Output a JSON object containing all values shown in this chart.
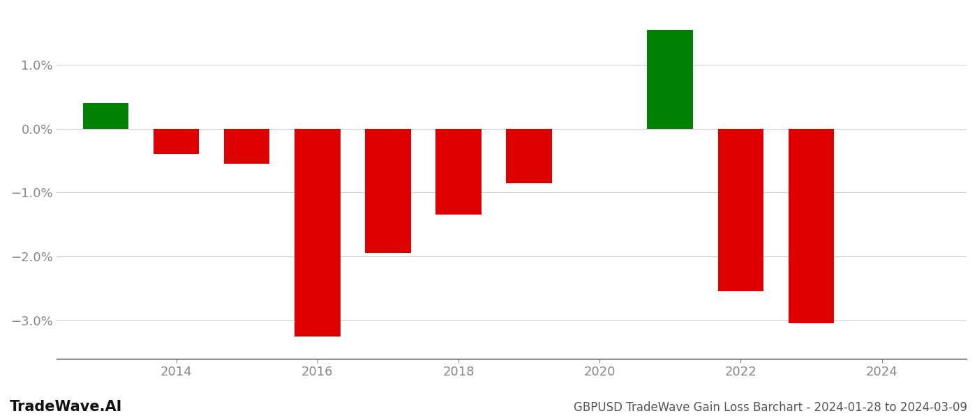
{
  "years": [
    2013,
    2014,
    2015,
    2016,
    2017,
    2018,
    2019,
    2021,
    2022,
    2023
  ],
  "values": [
    0.4,
    -0.4,
    -0.55,
    -3.25,
    -1.95,
    -1.35,
    -0.85,
    1.55,
    -2.55,
    -3.05
  ],
  "bar_colors": [
    "#008000",
    "#dd0000",
    "#dd0000",
    "#dd0000",
    "#dd0000",
    "#dd0000",
    "#dd0000",
    "#008000",
    "#dd0000",
    "#dd0000"
  ],
  "title": "GBPUSD TradeWave Gain Loss Barchart - 2024-01-28 to 2024-03-09",
  "watermark": "TradeWave.AI",
  "ylim": [
    -3.6,
    1.85
  ],
  "yticks": [
    -3.0,
    -2.0,
    -1.0,
    0.0,
    1.0
  ],
  "xticks": [
    2014,
    2016,
    2018,
    2020,
    2022,
    2024
  ],
  "xlim": [
    2012.3,
    2025.2
  ],
  "background_color": "#ffffff",
  "grid_color": "#cccccc",
  "bar_width": 0.65,
  "title_fontsize": 12,
  "watermark_fontsize": 15,
  "tick_fontsize": 13
}
